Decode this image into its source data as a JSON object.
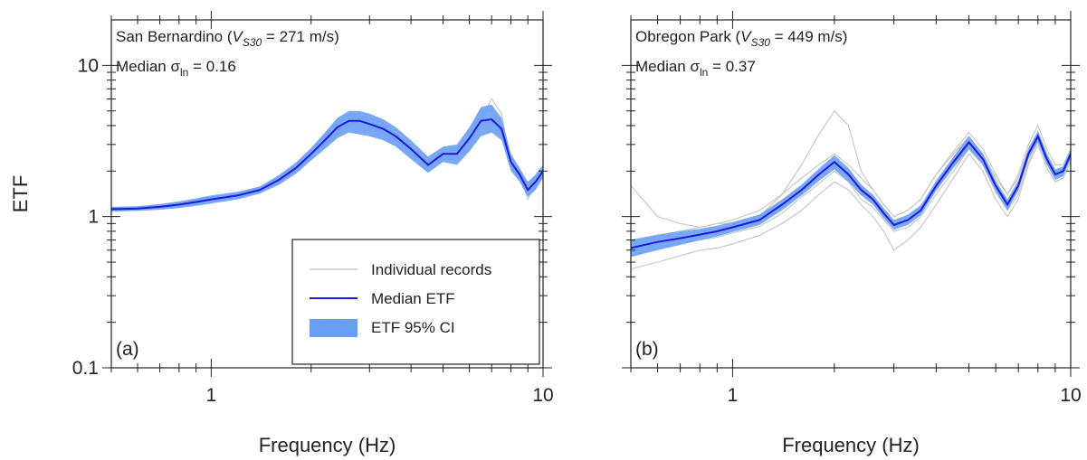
{
  "chart_data": [
    {
      "type": "line",
      "panel_label": "(a)",
      "x_label": "Frequency (Hz)",
      "y_label": "ETF",
      "site_label": {
        "prefix": "San Bernardino (",
        "symbol": "V",
        "subscript": "S30",
        "suffix": " = 271 m/s)"
      },
      "sigma_label": {
        "prefix": "Median ",
        "symbol": "σ",
        "subscript": "ln",
        "suffix": " = 0.16"
      },
      "log_x": true,
      "log_y": true,
      "legend": "lower right",
      "xlim": [
        0.5,
        10
      ],
      "ylim": [
        0.1,
        20
      ],
      "xticks": [
        1,
        10
      ],
      "yticks": [
        0.1,
        1,
        10
      ],
      "xminorticks": [
        0.5,
        0.6,
        0.7,
        0.8,
        0.9,
        2,
        3,
        4,
        5,
        6,
        7,
        8,
        9
      ],
      "yminorticks": [
        0.2,
        0.3,
        0.4,
        0.5,
        0.6,
        0.7,
        0.8,
        0.9,
        2,
        3,
        4,
        5,
        6,
        7,
        8,
        9
      ],
      "x": [
        0.5,
        0.6,
        0.7,
        0.8,
        0.9,
        1.0,
        1.2,
        1.4,
        1.6,
        1.8,
        2.0,
        2.2,
        2.4,
        2.6,
        2.8,
        3.0,
        3.3,
        3.6,
        4.0,
        4.5,
        5.0,
        5.5,
        6.0,
        6.5,
        7.0,
        7.5,
        8.0,
        8.5,
        9.0,
        9.5,
        10
      ],
      "records": {
        "name": "Individual records",
        "color": "#c8c8c8",
        "values": [
          [
            1.1,
            1.11,
            1.14,
            1.18,
            1.22,
            1.27,
            1.35,
            1.46,
            1.7,
            2.0,
            2.5,
            3.1,
            3.7,
            4.1,
            4.1,
            3.9,
            3.6,
            3.2,
            2.6,
            2.0,
            2.4,
            2.4,
            3.0,
            4.0,
            4.2,
            3.6,
            2.2,
            1.8,
            1.4,
            1.6,
            1.9
          ],
          [
            1.15,
            1.16,
            1.19,
            1.23,
            1.29,
            1.35,
            1.42,
            1.56,
            1.82,
            2.2,
            2.8,
            3.4,
            4.2,
            4.7,
            4.6,
            4.3,
            3.9,
            3.5,
            2.9,
            2.3,
            2.7,
            2.8,
            3.6,
            4.8,
            5.0,
            4.1,
            2.5,
            2.0,
            1.6,
            1.8,
            2.1
          ],
          [
            1.13,
            1.12,
            1.15,
            1.19,
            1.24,
            1.28,
            1.37,
            1.48,
            1.72,
            2.05,
            2.55,
            3.0,
            3.5,
            3.9,
            4.6,
            4.5,
            4.1,
            3.4,
            2.7,
            2.1,
            2.5,
            2.5,
            3.2,
            4.4,
            6.0,
            4.8,
            2.1,
            1.9,
            1.3,
            1.6,
            2.0
          ]
        ]
      },
      "ci": {
        "name": "ETF 95% CI",
        "color": "#6a9ef5",
        "lower": [
          1.08,
          1.09,
          1.11,
          1.14,
          1.18,
          1.22,
          1.3,
          1.42,
          1.62,
          1.92,
          2.35,
          2.8,
          3.3,
          3.6,
          3.5,
          3.4,
          3.2,
          2.9,
          2.4,
          1.95,
          2.3,
          2.2,
          2.7,
          3.4,
          3.6,
          3.2,
          2.0,
          1.7,
          1.35,
          1.5,
          1.8
        ],
        "upper": [
          1.16,
          1.17,
          1.21,
          1.26,
          1.32,
          1.38,
          1.46,
          1.58,
          1.88,
          2.28,
          2.85,
          3.6,
          4.5,
          5.0,
          5.0,
          4.8,
          4.4,
          3.9,
          3.2,
          2.5,
          2.9,
          3.0,
          3.9,
          5.3,
          5.5,
          4.5,
          2.6,
          2.1,
          1.7,
          1.9,
          2.2
        ]
      },
      "median": {
        "name": "Median ETF",
        "color": "#1a1ae0",
        "values": [
          1.12,
          1.13,
          1.16,
          1.2,
          1.25,
          1.3,
          1.38,
          1.5,
          1.75,
          2.1,
          2.6,
          3.2,
          3.9,
          4.3,
          4.3,
          4.1,
          3.8,
          3.4,
          2.8,
          2.2,
          2.6,
          2.6,
          3.3,
          4.3,
          4.4,
          3.8,
          2.3,
          1.9,
          1.5,
          1.7,
          2.0
        ]
      }
    },
    {
      "type": "line",
      "panel_label": "(b)",
      "x_label": "Frequency (Hz)",
      "site_label": {
        "prefix": "Obregon Park (",
        "symbol": "V",
        "subscript": "S30",
        "suffix": " = 449 m/s)"
      },
      "sigma_label": {
        "prefix": "Median ",
        "symbol": "σ",
        "subscript": "ln",
        "suffix": " = 0.37"
      },
      "log_x": true,
      "log_y": true,
      "ytick_labels": false,
      "xlim": [
        0.5,
        10
      ],
      "ylim": [
        0.1,
        20
      ],
      "xticks": [
        1,
        10
      ],
      "yticks": [
        0.1,
        1,
        10
      ],
      "xminorticks": [
        0.5,
        0.6,
        0.7,
        0.8,
        0.9,
        2,
        3,
        4,
        5,
        6,
        7,
        8,
        9
      ],
      "yminorticks": [
        0.2,
        0.3,
        0.4,
        0.5,
        0.6,
        0.7,
        0.8,
        0.9,
        2,
        3,
        4,
        5,
        6,
        7,
        8,
        9
      ],
      "x": [
        0.5,
        0.6,
        0.7,
        0.8,
        0.9,
        1.0,
        1.2,
        1.4,
        1.6,
        1.8,
        2.0,
        2.2,
        2.4,
        2.6,
        2.8,
        3.0,
        3.3,
        3.6,
        4.0,
        4.5,
        5.0,
        5.5,
        6.0,
        6.5,
        7.0,
        7.5,
        8.0,
        8.5,
        9.0,
        9.5,
        10
      ],
      "records": {
        "color": "#c8c8c8",
        "values": [
          [
            1.6,
            1.0,
            0.9,
            0.85,
            0.9,
            0.9,
            1.0,
            1.4,
            2.2,
            3.5,
            5.0,
            4.0,
            2.0,
            1.5,
            1.2,
            1.0,
            1.1,
            1.3,
            1.9,
            2.6,
            3.4,
            2.6,
            1.8,
            1.4,
            1.8,
            2.8,
            3.6,
            2.6,
            2.0,
            2.0,
            2.6
          ],
          [
            0.45,
            0.5,
            0.55,
            0.6,
            0.62,
            0.66,
            0.75,
            0.9,
            1.1,
            1.4,
            1.7,
            1.5,
            1.2,
            1.0,
            0.8,
            0.6,
            0.7,
            0.85,
            1.2,
            1.8,
            2.6,
            2.0,
            1.3,
            1.0,
            1.3,
            2.2,
            3.0,
            2.1,
            1.7,
            1.8,
            2.3
          ],
          [
            0.7,
            0.75,
            0.8,
            0.85,
            0.9,
            0.95,
            1.1,
            1.4,
            1.8,
            2.2,
            2.6,
            2.2,
            1.8,
            1.5,
            1.2,
            1.0,
            1.1,
            1.3,
            1.9,
            2.7,
            3.6,
            2.8,
            1.9,
            1.4,
            1.9,
            3.0,
            4.0,
            2.8,
            2.2,
            2.2,
            2.8
          ],
          [
            0.55,
            0.62,
            0.66,
            0.7,
            0.73,
            0.78,
            0.86,
            1.05,
            1.35,
            1.65,
            2.0,
            1.7,
            1.3,
            1.15,
            0.95,
            0.8,
            0.85,
            1.0,
            1.4,
            2.0,
            2.8,
            2.2,
            1.45,
            1.1,
            1.4,
            2.3,
            3.0,
            2.1,
            1.7,
            1.8,
            2.3
          ]
        ]
      },
      "ci": {
        "color": "#6a9ef5",
        "lower": [
          0.54,
          0.6,
          0.65,
          0.7,
          0.74,
          0.79,
          0.88,
          1.1,
          1.38,
          1.72,
          2.05,
          1.7,
          1.38,
          1.2,
          0.97,
          0.82,
          0.88,
          1.02,
          1.48,
          2.1,
          2.8,
          2.2,
          1.48,
          1.1,
          1.48,
          2.4,
          3.1,
          2.2,
          1.75,
          1.85,
          2.4
        ],
        "upper": [
          0.7,
          0.76,
          0.8,
          0.83,
          0.87,
          0.92,
          1.03,
          1.3,
          1.63,
          2.08,
          2.55,
          2.1,
          1.63,
          1.4,
          1.14,
          0.95,
          1.03,
          1.19,
          1.73,
          2.5,
          3.4,
          2.6,
          1.73,
          1.3,
          1.73,
          2.8,
          3.7,
          2.6,
          2.05,
          2.15,
          2.8
        ]
      },
      "median": {
        "color": "#1a1ae0",
        "values": [
          0.62,
          0.68,
          0.72,
          0.76,
          0.8,
          0.85,
          0.95,
          1.2,
          1.5,
          1.9,
          2.3,
          1.9,
          1.5,
          1.3,
          1.05,
          0.88,
          0.95,
          1.1,
          1.6,
          2.3,
          3.1,
          2.4,
          1.6,
          1.2,
          1.6,
          2.6,
          3.4,
          2.4,
          1.9,
          2.0,
          2.6
        ]
      }
    }
  ]
}
